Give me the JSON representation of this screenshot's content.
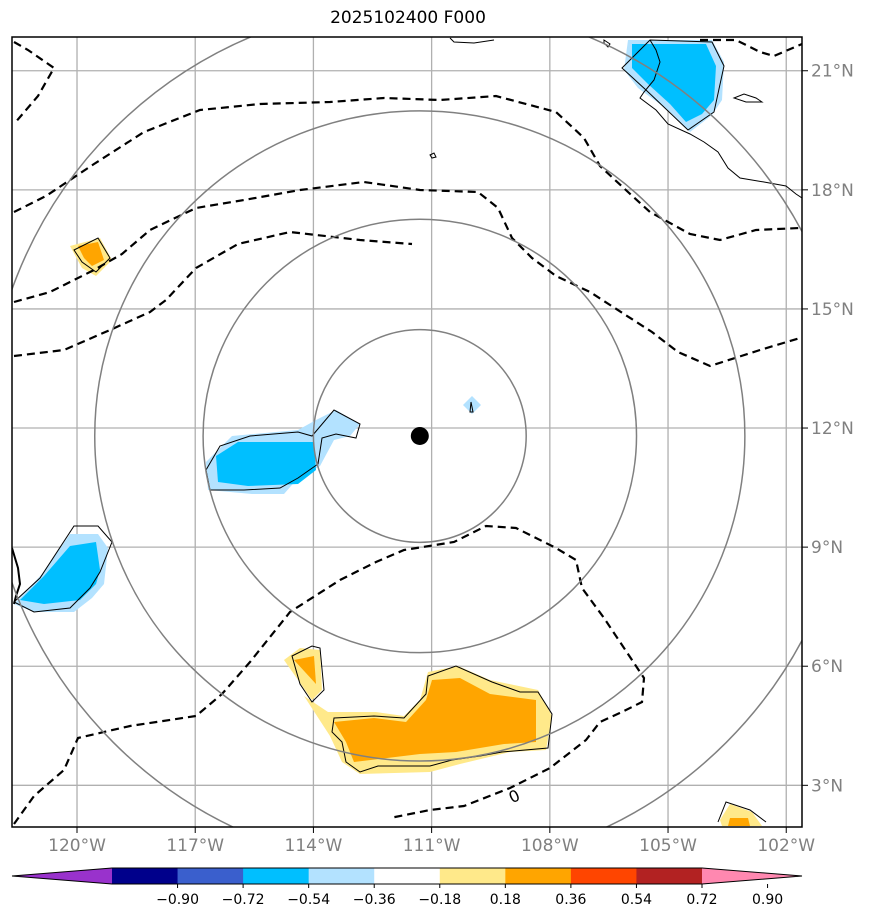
{
  "title": "2025102400 F000",
  "chart_data": {
    "type": "heatmap",
    "title": "2025102400 F000",
    "projection": "map with lat/lon gridlines, range rings, contours and shaded anomaly field",
    "lon_ticks": [
      "120°W",
      "117°W",
      "114°W",
      "111°W",
      "108°W",
      "105°W",
      "102°W"
    ],
    "lat_ticks": [
      "3°N",
      "6°N",
      "9°N",
      "12°N",
      "15°N",
      "18°N",
      "21°N"
    ],
    "lon_values": [
      -120,
      -117,
      -114,
      -111,
      -108,
      -105,
      -102
    ],
    "lat_values": [
      3,
      6,
      9,
      12,
      15,
      18,
      21
    ],
    "xlim": [
      -121.65,
      -101.6
    ],
    "ylim": [
      1.95,
      21.85
    ],
    "center": {
      "lon": -111.3,
      "lat": 11.8
    },
    "range_rings_deg": [
      2.7,
      5.5,
      8.25,
      11.0
    ],
    "contour_label": "0",
    "colorbar": {
      "ticks": [
        "−0.90",
        "−0.72",
        "−0.54",
        "−0.36",
        "−0.18",
        "0.18",
        "0.36",
        "0.54",
        "0.72",
        "0.90"
      ],
      "colors": [
        "#9932cc",
        "#00008b",
        "#3a5fcd",
        "#00bfff",
        "#b3e2ff",
        "#ffffff",
        "#ffe98a",
        "#ffa500",
        "#ff4500",
        "#b22222",
        "#ff88b0"
      ],
      "extend": "both"
    },
    "colors": {
      "frame": "#000000",
      "grid": "#b0b0b0",
      "ring": "#808080",
      "tick_text": "#808080"
    }
  }
}
